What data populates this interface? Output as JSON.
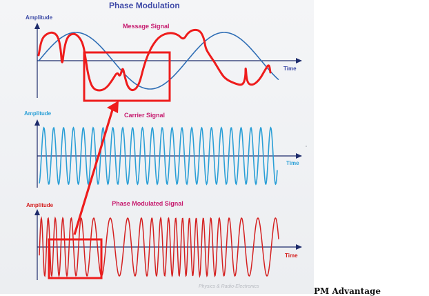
{
  "title": "Phase Modulation",
  "panels": {
    "message": {
      "amplitude_label": "Amplitude",
      "time_label": "Time",
      "title": "Message Signal"
    },
    "carrier": {
      "amplitude_label": "Amplitude",
      "time_label": "Time",
      "title": "Carrier Signal"
    },
    "modulated": {
      "amplitude_label": "Amplitude",
      "time_label": "Time",
      "title": "Phase Modulated Signal"
    }
  },
  "credit": "Physics & Radio-Electronics",
  "footer_heading": "PM Advantage",
  "colors": {
    "message_wave": "#2f6eb5",
    "carrier_wave": "#2a9fd6",
    "modulated_wave": "#d42020",
    "annotation": "#ee1c1c",
    "title_blue": "#3f4aa8",
    "signal_title": "#c61a6e"
  }
}
